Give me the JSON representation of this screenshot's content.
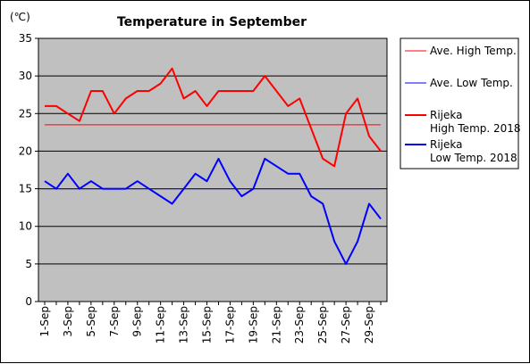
{
  "chart_data": {
    "type": "line",
    "title": "Temperature in September",
    "unit": "(℃)",
    "ylim": [
      0,
      35
    ],
    "yticks": [
      0,
      5,
      10,
      15,
      20,
      25,
      30,
      35
    ],
    "x": [
      1,
      2,
      3,
      4,
      5,
      6,
      7,
      8,
      9,
      10,
      11,
      12,
      13,
      14,
      15,
      16,
      17,
      18,
      19,
      20,
      21,
      22,
      23,
      24,
      25,
      26,
      27,
      28,
      29,
      30
    ],
    "xtick_labels": [
      "1-Sep",
      "3-Sep",
      "5-Sep",
      "7-Sep",
      "9-Sep",
      "11-Sep",
      "13-Sep",
      "15-Sep",
      "17-Sep",
      "19-Sep",
      "21-Sep",
      "23-Sep",
      "25-Sep",
      "27-Sep",
      "29-Sep"
    ],
    "grid": true,
    "legend_position": "right",
    "plot_background": "#c0c0c0",
    "series": [
      {
        "name": "Ave. High Temp.",
        "color": "#ff0000",
        "width": 1,
        "values": [
          23.5,
          23.5,
          23.5,
          23.5,
          23.5,
          23.5,
          23.5,
          23.5,
          23.5,
          23.5,
          23.5,
          23.5,
          23.5,
          23.5,
          23.5,
          23.5,
          23.5,
          23.5,
          23.5,
          23.5,
          23.5,
          23.5,
          23.5,
          23.5,
          23.5,
          23.5,
          23.5,
          23.5,
          23.5,
          23.5
        ]
      },
      {
        "name": "Ave. Low Temp.",
        "color": "#0000ff",
        "width": 1,
        "values": [
          15,
          15,
          15,
          15,
          15,
          15,
          15,
          15,
          15,
          15,
          15,
          15,
          15,
          15,
          15,
          15,
          15,
          15,
          15,
          15,
          15,
          15,
          15,
          15,
          15,
          15,
          15,
          15,
          15,
          15
        ]
      },
      {
        "name": "Rijeka High Temp. 2018",
        "legend_lines": [
          "Rijeka",
          "High Temp. 2018"
        ],
        "color": "#ff0000",
        "width": 2,
        "values": [
          26,
          26,
          25,
          24,
          28,
          28,
          25,
          27,
          28,
          28,
          29,
          31,
          27,
          28,
          26,
          28,
          28,
          28,
          28,
          30,
          28,
          26,
          27,
          23,
          19,
          18,
          25,
          27,
          22,
          20
        ]
      },
      {
        "name": "Rijeka Low Temp. 2018",
        "legend_lines": [
          "Rijeka",
          "Low Temp. 2018"
        ],
        "color": "#0000ff",
        "width": 2,
        "values": [
          16,
          15,
          17,
          15,
          16,
          15,
          15,
          15,
          16,
          15,
          14,
          13,
          15,
          17,
          16,
          19,
          16,
          14,
          15,
          19,
          18,
          17,
          17,
          14,
          13,
          8,
          5,
          8,
          13,
          11
        ]
      }
    ]
  }
}
